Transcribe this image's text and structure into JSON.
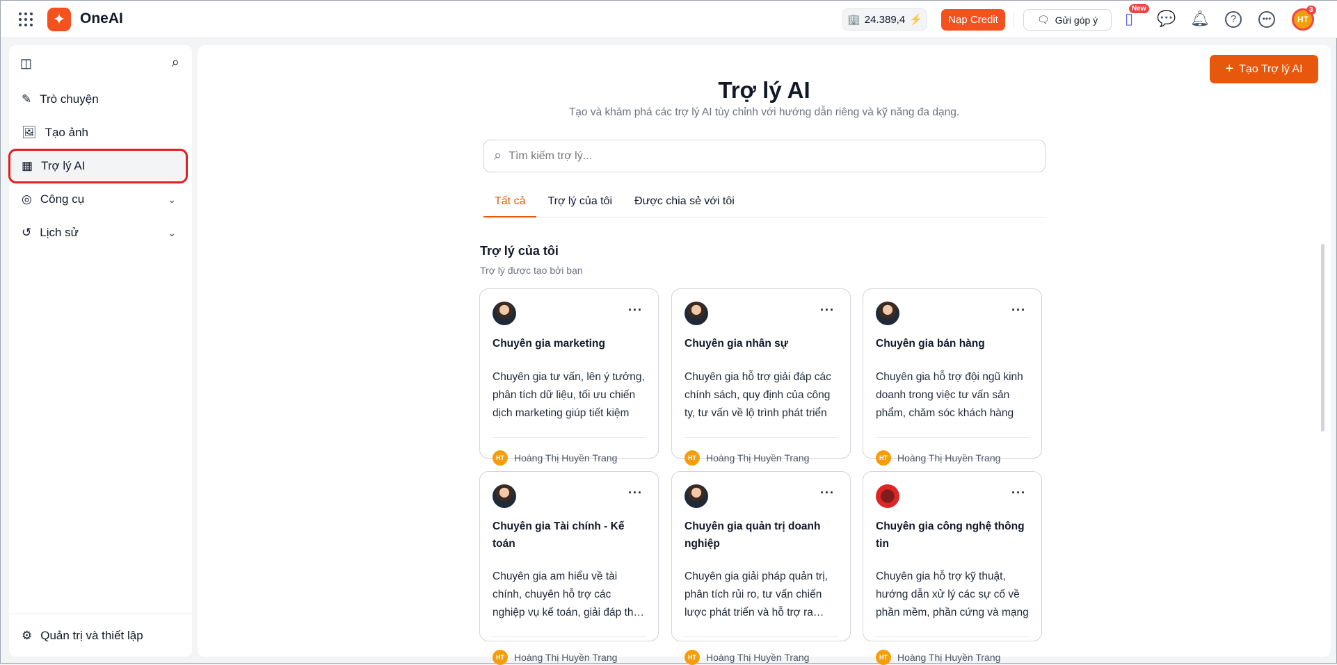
{
  "app": {
    "name": "OneAI",
    "credit": "24.389,4",
    "topup": "Nạp Credit",
    "feedback": "Gửi góp ý",
    "new_badge": "New",
    "avatar": "HT",
    "notif_count": "3"
  },
  "sidebar": {
    "items": [
      {
        "label": "Trò chuyện",
        "icon": "edit-icon"
      },
      {
        "label": "Tạo ảnh",
        "icon": "image-plus-icon"
      },
      {
        "label": "Trợ lý AI",
        "icon": "grid-icon",
        "active": true
      },
      {
        "label": "Công cụ",
        "icon": "compass-icon",
        "expandable": true
      },
      {
        "label": "Lịch sử",
        "icon": "history-icon",
        "expandable": true
      }
    ],
    "settings": "Quản trị và thiết lập"
  },
  "main": {
    "create_label": "Tạo Trợ lý AI",
    "title": "Trợ lý AI",
    "subtitle": "Tạo và khám phá các trợ lý AI tùy chỉnh với hướng dẫn riêng và kỹ năng đa dạng.",
    "search_placeholder": "Tìm kiếm trợ lý...",
    "tabs": [
      "Tất cả",
      "Trợ lý của tôi",
      "Được chia sẻ với tôi"
    ],
    "section_title": "Trợ lý của tôi",
    "section_subtitle": "Trợ lý được tạo bởi bạn",
    "cards": [
      {
        "title": "Chuyên gia marketing",
        "desc": "Chuyên gia tư vấn, lên ý tưởng, phân tích dữ liệu, tối ưu chiến dịch marketing giúp tiết kiệm",
        "author": "Hoàng Thị Huyền Trang",
        "author_initials": "HT"
      },
      {
        "title": "Chuyên gia nhân sự",
        "desc": "Chuyên gia hỗ trợ giải đáp các chính sách, quy định của công ty, tư vấn về lộ trình phát triển",
        "author": "Hoàng Thị Huyền Trang",
        "author_initials": "HT"
      },
      {
        "title": "Chuyên gia bán hàng",
        "desc": "Chuyên gia hỗ trợ đội ngũ kinh doanh trong việc tư vấn sản phẩm, chăm sóc khách hàng",
        "author": "Hoàng Thị Huyền Trang",
        "author_initials": "HT"
      },
      {
        "title": "Chuyên gia Tài chính - Kế toán",
        "desc": "Chuyên gia am hiểu về tài chính, chuyên hỗ trợ các nghiệp vụ kế toán, giải đáp thắc mắc",
        "author": "Hoàng Thị Huyền Trang",
        "author_initials": "HT"
      },
      {
        "title": "Chuyên gia quản trị doanh nghiệp",
        "desc": "Chuyên gia giải pháp quản trị, phân tích rủi ro, tư vấn chiến lược phát triển và hỗ trợ ra quyết định",
        "author": "Hoàng Thị Huyền Trang",
        "author_initials": "HT"
      },
      {
        "title": "Chuyên gia công nghệ thông tin",
        "desc": "Chuyên gia hỗ trợ kỹ thuật, hướng dẫn xử lý các sự cố về phần mềm, phần cứng và mạng",
        "author": "Hoàng Thị Huyền Trang",
        "author_initials": "HT"
      }
    ]
  },
  "colors": {
    "accent": "#e8580c",
    "brand": "#f4511e"
  }
}
